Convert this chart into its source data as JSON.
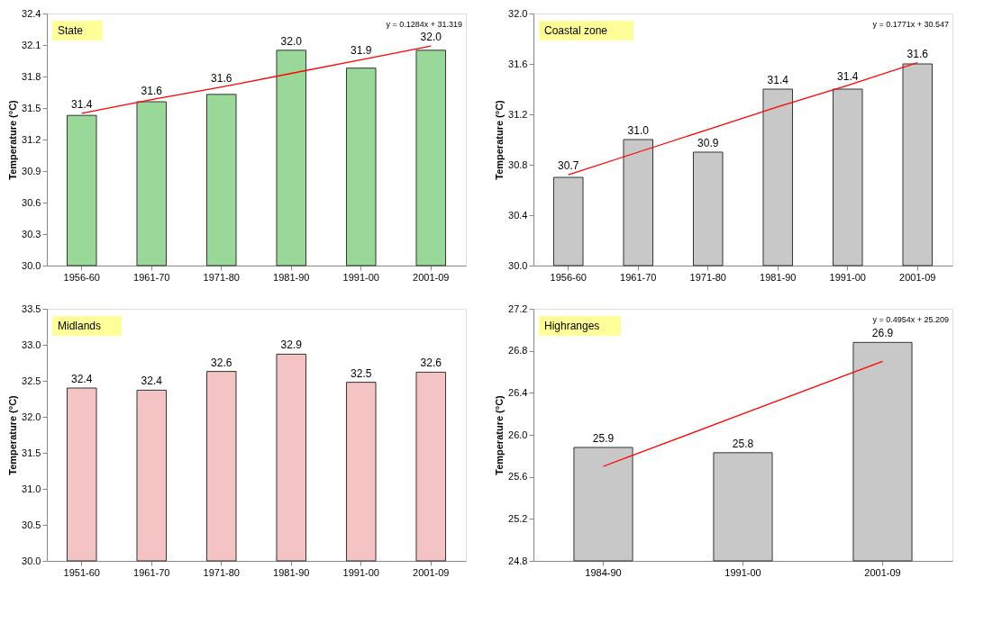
{
  "chart_data": [
    {
      "type": "bar",
      "title": "State",
      "ylabel": "Temperature (°C)",
      "categories": [
        "1956-60",
        "1961-70",
        "1971-80",
        "1981-90",
        "1991-00",
        "2001-09"
      ],
      "series": [
        {
          "color": "#9ad89a",
          "values": [
            31.43,
            31.56,
            31.63,
            32.05,
            31.88,
            32.05
          ],
          "value_labels": [
            "31.4",
            "31.6",
            "31.6",
            "32.0",
            "31.9",
            "32.0"
          ]
        },
        {
          "type": "line",
          "color": "#ff0000",
          "values": [
            31.45,
            31.58,
            31.7,
            31.83,
            31.96,
            32.09
          ]
        }
      ],
      "ylim": [
        30.0,
        32.4
      ],
      "yticks": [
        {
          "value": 30,
          "label": "30.0"
        },
        30.3,
        30.6,
        30.9,
        31.2,
        31.5,
        31.8,
        32.1,
        32.4
      ],
      "annotations": [
        "y = 0.1284x + 31.319"
      ],
      "grid": false
    },
    {
      "type": "bar",
      "title": "Coastal zone",
      "ylabel": "Temperature (°C)",
      "categories": [
        "1956-60",
        "1961-70",
        "1971-80",
        "1981-90",
        "1991-00",
        "2001-09"
      ],
      "series": [
        {
          "color": "#c8c8c8",
          "values": [
            30.7,
            31.0,
            30.9,
            31.4,
            31.4,
            31.6
          ],
          "value_labels": [
            "30.7",
            "31.0",
            "30.9",
            "31.4",
            "31.4",
            "31.6"
          ]
        },
        {
          "type": "line",
          "color": "#ff0000",
          "values": [
            30.72,
            30.9,
            31.08,
            31.26,
            31.43,
            31.61
          ]
        }
      ],
      "ylim": [
        30.0,
        32.0
      ],
      "yticks": [
        {
          "value": 30,
          "label": "30.0"
        },
        30.4,
        30.8,
        31.2,
        31.6,
        {
          "value": 32,
          "label": "32.0"
        }
      ],
      "annotations": [
        "y = 0.1771x + 30.547"
      ],
      "grid": false
    },
    {
      "type": "bar",
      "title": "Midlands",
      "ylabel": "Temperature (°C)",
      "categories": [
        "1951-60",
        "1961-70",
        "1971-80",
        "1981-90",
        "1991-00",
        "2001-09"
      ],
      "series": [
        {
          "color": "#f4c4c4",
          "values": [
            32.4,
            32.37,
            32.63,
            32.87,
            32.48,
            32.62
          ],
          "value_labels": [
            "32.4",
            "32.4",
            "32.6",
            "32.9",
            "32.5",
            "32.6"
          ]
        }
      ],
      "ylim": [
        30.0,
        33.5
      ],
      "yticks": [
        {
          "value": 30,
          "label": "30.0"
        },
        30.5,
        {
          "value": 31,
          "label": "31.0"
        },
        31.5,
        {
          "value": 32,
          "label": "32.0"
        },
        32.5,
        {
          "value": 33,
          "label": "33.0"
        },
        33.5
      ],
      "grid": false
    },
    {
      "type": "bar",
      "title": "Highranges",
      "ylabel": "Temperature (°C)",
      "categories": [
        "1984-90",
        "1991-00",
        "2001-09"
      ],
      "series": [
        {
          "color": "#c8c8c8",
          "values": [
            25.88,
            25.83,
            26.88
          ],
          "value_labels": [
            "25.9",
            "25.8",
            "26.9"
          ]
        },
        {
          "type": "line",
          "color": "#ff0000",
          "values": [
            25.7,
            26.2,
            26.7
          ]
        }
      ],
      "ylim": [
        24.8,
        27.2
      ],
      "yticks": [
        24.8,
        25.2,
        25.6,
        {
          "value": 26,
          "label": "26.0"
        },
        26.4,
        26.8,
        27.2
      ],
      "annotations": [
        "y = 0.4954x + 25.209"
      ],
      "grid": false
    }
  ]
}
